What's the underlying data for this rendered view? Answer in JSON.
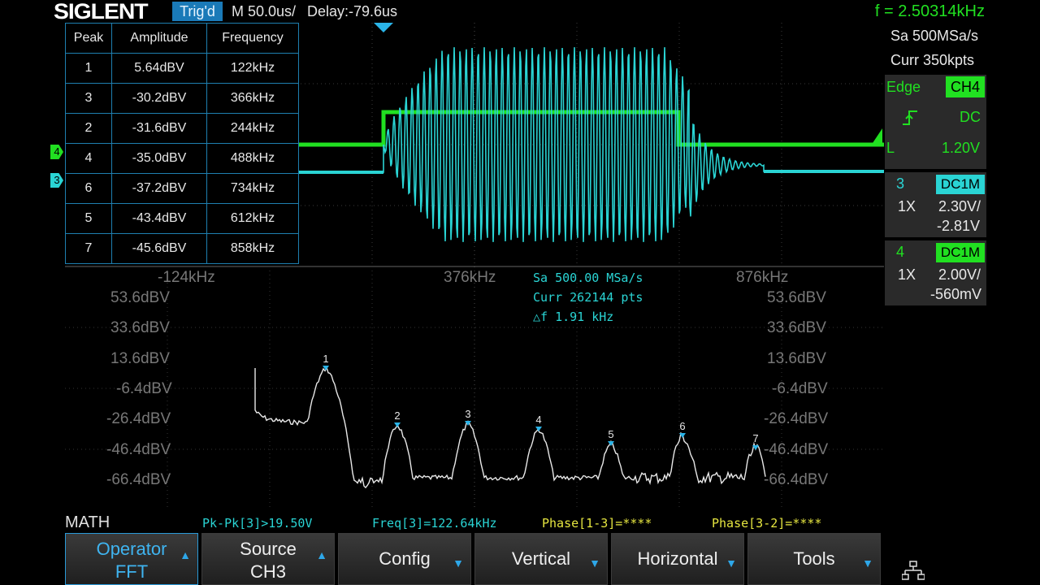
{
  "header": {
    "brand": "SIGLENT",
    "trig_status": "Trig'd",
    "timebase": "M 50.0us/",
    "delay": "Delay:-79.6us",
    "frequency": "f = 2.50314kHz"
  },
  "right_panel": {
    "sample_rate": "Sa 500MSa/s",
    "memory_depth": "Curr 350kpts",
    "trigger": {
      "type": "Edge",
      "source": "CH4",
      "coupling": "DC",
      "level_label": "L",
      "level": "1.20V"
    },
    "channels": [
      {
        "number": "3",
        "coupling": "DC1M",
        "probe": "1X",
        "scale": "2.30V/",
        "offset": "-2.81V",
        "color": "#2ad4d4"
      },
      {
        "number": "4",
        "coupling": "DC1M",
        "probe": "1X",
        "scale": "2.00V/",
        "offset": "-560mV",
        "color": "#21e021"
      }
    ]
  },
  "peak_table": {
    "headers": [
      "Peak",
      "Amplitude",
      "Frequency"
    ],
    "rows": [
      [
        "1",
        "5.64dBV",
        "122kHz"
      ],
      [
        "3",
        "-30.2dBV",
        "366kHz"
      ],
      [
        "2",
        "-31.6dBV",
        "244kHz"
      ],
      [
        "4",
        "-35.0dBV",
        "488kHz"
      ],
      [
        "6",
        "-37.2dBV",
        "734kHz"
      ],
      [
        "5",
        "-43.4dBV",
        "612kHz"
      ],
      [
        "7",
        "-45.6dBV",
        "858kHz"
      ]
    ]
  },
  "fft": {
    "x_labels": [
      "-124kHz",
      "376kHz",
      "876kHz"
    ],
    "y_labels": [
      "53.6dBV",
      "33.6dBV",
      "13.6dBV",
      "-6.4dBV",
      "-26.4dBV",
      "-46.4dBV",
      "-66.4dBV"
    ],
    "info": [
      "Sa 500.00 MSa/s",
      "Curr 262144 pts",
      "△f 1.91 kHz"
    ],
    "peak_markers": [
      "1",
      "2",
      "3",
      "4",
      "5",
      "6",
      "7"
    ]
  },
  "channel_markers": {
    "ch4": "4",
    "ch3": "3"
  },
  "math": {
    "label": "MATH"
  },
  "measurements": [
    {
      "text": "Pk-Pk[3]>19.50V",
      "color": "#2ad4d4"
    },
    {
      "text": "Freq[3]=122.64kHz",
      "color": "#2ad4d4"
    },
    {
      "text": "Phase[1-3]=****",
      "color": "#e6e640"
    },
    {
      "text": "Phase[3-2]=****",
      "color": "#e6e640"
    }
  ],
  "softkeys": [
    {
      "line1": "Operator",
      "line2": "FFT",
      "arrow": "▲",
      "active": true
    },
    {
      "line1": "Source",
      "line2": "CH3",
      "arrow": "▲",
      "active": false
    },
    {
      "line1": "Config",
      "line2": "",
      "arrow": "▼",
      "active": false
    },
    {
      "line1": "Vertical",
      "line2": "",
      "arrow": "▼",
      "active": false
    },
    {
      "line1": "Horizontal",
      "line2": "",
      "arrow": "▼",
      "active": false
    },
    {
      "line1": "Tools",
      "line2": "",
      "arrow": "▼",
      "active": false
    }
  ],
  "network_icon": "network-icon"
}
